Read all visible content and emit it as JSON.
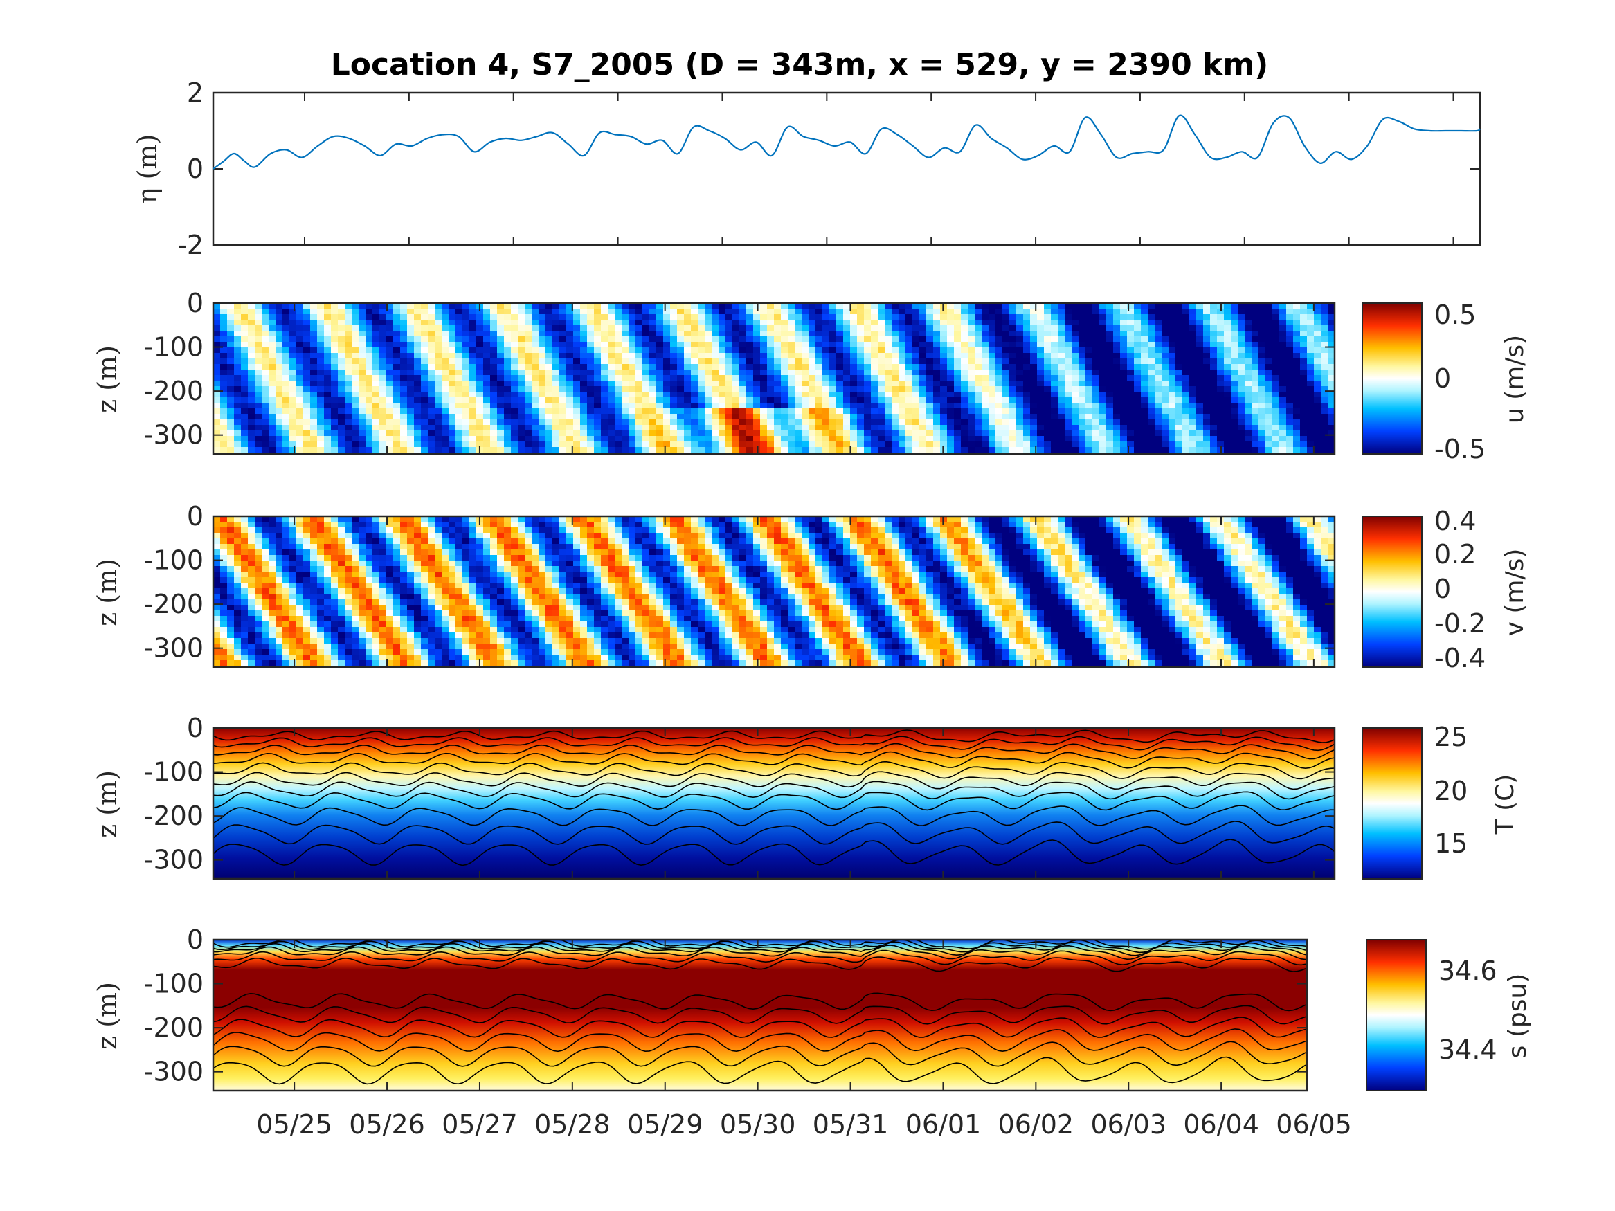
{
  "figure": {
    "title": "Location 4, S7_2005 (D = 343m, x = 529, y = 2390 km)"
  },
  "chart_data": [
    {
      "type": "line",
      "ylabel": "η (m)",
      "ylim": [
        -2,
        2
      ],
      "yticks": [
        "2",
        "0",
        "-2"
      ],
      "xlim": [
        "05/24 03:00",
        "06/05 06:00"
      ],
      "series": [
        {
          "color": "#0072bd",
          "x_days": [
            0.0,
            0.1,
            0.2,
            0.3,
            0.4,
            0.55,
            0.7,
            0.85,
            1.0,
            1.15,
            1.3,
            1.45,
            1.6,
            1.75,
            1.9,
            2.05,
            2.2,
            2.35,
            2.5,
            2.65,
            2.8,
            2.95,
            3.1,
            3.25,
            3.4,
            3.55,
            3.7,
            3.85,
            4.0,
            4.15,
            4.3,
            4.45,
            4.6,
            4.75,
            4.9,
            5.05,
            5.2,
            5.35,
            5.5,
            5.65,
            5.8,
            5.95,
            6.1,
            6.25,
            6.4,
            6.55,
            6.7,
            6.85,
            7.0,
            7.15,
            7.3,
            7.45,
            7.6,
            7.75,
            7.9,
            8.05,
            8.2,
            8.35,
            8.5,
            8.65,
            8.8,
            8.95,
            9.1,
            9.25,
            9.4,
            9.55,
            9.7,
            9.85,
            10.0,
            10.15,
            10.3,
            10.45,
            10.6,
            10.75,
            10.9,
            11.05,
            11.2,
            11.35,
            11.5,
            11.65,
            11.8,
            11.95,
            12.1,
            12.13
          ],
          "values": [
            0.0,
            0.2,
            0.4,
            0.2,
            0.05,
            0.4,
            0.5,
            0.3,
            0.6,
            0.85,
            0.8,
            0.6,
            0.35,
            0.65,
            0.6,
            0.8,
            0.9,
            0.85,
            0.45,
            0.7,
            0.8,
            0.75,
            0.85,
            0.95,
            0.65,
            0.35,
            0.95,
            0.9,
            0.85,
            0.65,
            0.75,
            0.4,
            1.1,
            1.0,
            0.8,
            0.5,
            0.7,
            0.35,
            1.1,
            0.85,
            0.75,
            0.6,
            0.7,
            0.4,
            1.05,
            0.9,
            0.6,
            0.3,
            0.55,
            0.45,
            1.15,
            0.8,
            0.55,
            0.25,
            0.35,
            0.6,
            0.45,
            1.35,
            0.9,
            0.3,
            0.4,
            0.45,
            0.5,
            1.4,
            0.9,
            0.3,
            0.3,
            0.45,
            0.3,
            1.2,
            1.35,
            0.6,
            0.15,
            0.45,
            0.25,
            0.6,
            1.3,
            1.25,
            1.05,
            1.0,
            1.0,
            1.0,
            1.0,
            1.05
          ]
        }
      ]
    },
    {
      "type": "heatmap",
      "variable": "u",
      "ylabel": "z (m)",
      "yticks": [
        "0",
        "-100",
        "-200",
        "-300"
      ],
      "ylim": [
        -343,
        0
      ],
      "colorbar": {
        "label": "u (m/s)",
        "range": [
          -0.5,
          0.5
        ],
        "ticks": [
          "0.5",
          "0",
          "-0.5"
        ],
        "colormap": "jet-white"
      },
      "approx_pattern": "mostly negative (westward) flow, strengthening after 06/01; positive bursts near bottom around 05/29–05/31"
    },
    {
      "type": "heatmap",
      "variable": "v",
      "ylabel": "z (m)",
      "yticks": [
        "0",
        "-100",
        "-200",
        "-300"
      ],
      "ylim": [
        -343,
        0
      ],
      "colorbar": {
        "label": "v (m/s)",
        "range": [
          -0.4,
          0.4
        ],
        "ticks": [
          "0.4",
          "0.2",
          "0",
          "-0.2",
          "-0.4"
        ],
        "colormap": "jet-white"
      },
      "approx_pattern": "tilted alternating bands of positive and negative flow; predominantly negative after 06/01"
    },
    {
      "type": "heatmap",
      "variable": "T",
      "ylabel": "z (m)",
      "yticks": [
        "0",
        "-100",
        "-200",
        "-300"
      ],
      "ylim": [
        -343,
        0
      ],
      "colorbar": {
        "label": "T (C)",
        "range": [
          11,
          26
        ],
        "ticks": [
          "25",
          "20",
          "15"
        ],
        "colormap": "jet-white"
      },
      "approx_pattern": "filled contours, warm (~26 C) near surface cooling to ~12 C near 300 m, isotherms oscillating with internal waves"
    },
    {
      "type": "heatmap",
      "variable": "s",
      "ylabel": "z (m)",
      "yticks": [
        "0",
        "-100",
        "-200",
        "-300"
      ],
      "ylim": [
        -343,
        0
      ],
      "colorbar": {
        "label": "s (psu)",
        "range": [
          34.3,
          34.68
        ],
        "ticks": [
          "34.6",
          "34.4"
        ],
        "colormap": "jet-white"
      },
      "approx_pattern": "fresh thin surface layer, salinity maximum (~34.68) at 50-150 m, decreasing to ~34.5 near 300 m"
    }
  ],
  "xaxis": {
    "ticklabels": [
      "05/25",
      "05/26",
      "05/27",
      "05/28",
      "05/29",
      "05/30",
      "05/31",
      "06/01",
      "06/02",
      "06/03",
      "06/04",
      "06/05"
    ]
  }
}
